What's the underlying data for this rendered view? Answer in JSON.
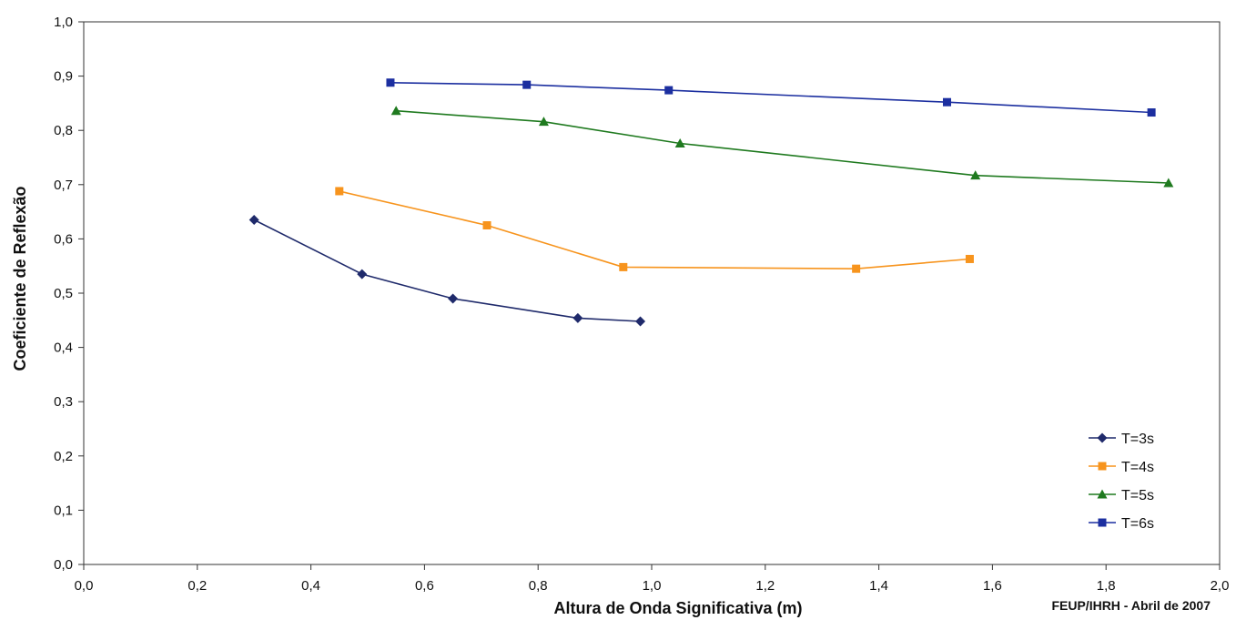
{
  "chart_data": {
    "type": "line",
    "title": "",
    "xlabel": "Altura de Onda Significativa (m)",
    "ylabel": "Coeficiente de Reflexão",
    "xlim": [
      0.0,
      2.0
    ],
    "ylim": [
      0.0,
      1.0
    ],
    "x_ticks": [
      "0,0",
      "0,2",
      "0,4",
      "0,6",
      "0,8",
      "1,0",
      "1,2",
      "1,4",
      "1,6",
      "1,8",
      "2,0"
    ],
    "y_ticks": [
      "0,0",
      "0,1",
      "0,2",
      "0,3",
      "0,4",
      "0,5",
      "0,6",
      "0,7",
      "0,8",
      "0,9",
      "1,0"
    ],
    "grid": false,
    "legend_position": "bottom-right",
    "series": [
      {
        "name": "T=3s",
        "color": "#1f2a6b",
        "marker": "diamond",
        "points": [
          [
            0.3,
            0.635
          ],
          [
            0.49,
            0.535
          ],
          [
            0.65,
            0.49
          ],
          [
            0.87,
            0.454
          ],
          [
            0.98,
            0.448
          ]
        ]
      },
      {
        "name": "T=4s",
        "color": "#f7941d",
        "marker": "square",
        "points": [
          [
            0.45,
            0.688
          ],
          [
            0.71,
            0.625
          ],
          [
            0.95,
            0.548
          ],
          [
            1.36,
            0.545
          ],
          [
            1.56,
            0.563
          ]
        ]
      },
      {
        "name": "T=5s",
        "color": "#1f7a1f",
        "marker": "triangle",
        "points": [
          [
            0.55,
            0.836
          ],
          [
            0.81,
            0.816
          ],
          [
            1.05,
            0.776
          ],
          [
            1.57,
            0.717
          ],
          [
            1.91,
            0.703
          ]
        ]
      },
      {
        "name": "T=6s",
        "color": "#1c2fa0",
        "marker": "square",
        "points": [
          [
            0.54,
            0.888
          ],
          [
            0.78,
            0.884
          ],
          [
            1.03,
            0.874
          ],
          [
            1.52,
            0.852
          ],
          [
            1.88,
            0.833
          ]
        ]
      }
    ]
  },
  "footer": {
    "credit": "FEUP/IHRH - Abril de 2007"
  }
}
